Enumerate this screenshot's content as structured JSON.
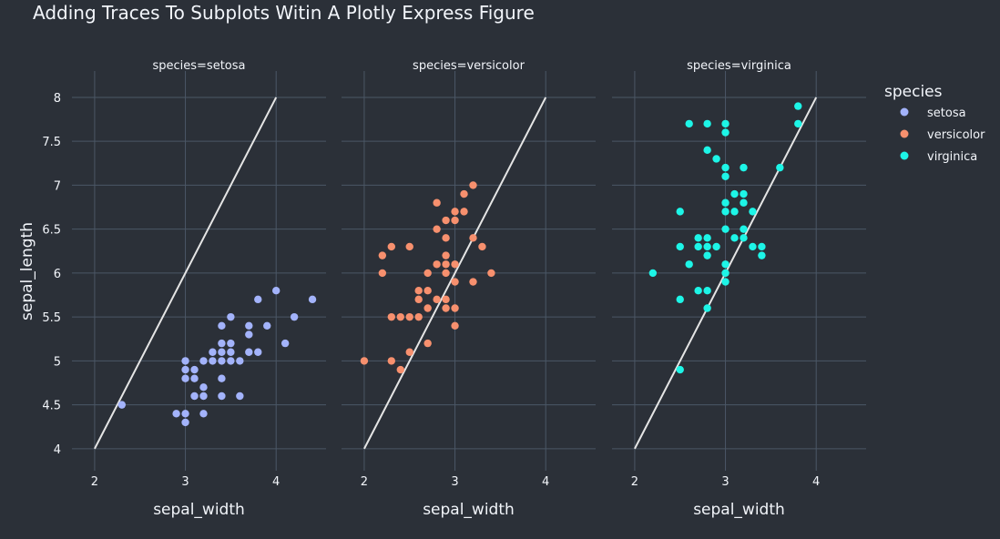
{
  "chart_data": {
    "type": "scatter",
    "title": "Adding Traces To Subplots Witin A Plotly Express Figure",
    "xlabel": "sepal_width",
    "ylabel": "sepal_length",
    "xlim": [
      1.75,
      4.55
    ],
    "ylim": [
      3.75,
      8.3
    ],
    "xticks": [
      2,
      3,
      4
    ],
    "yticks": [
      4,
      4.5,
      5,
      5.5,
      6,
      6.5,
      7,
      7.5,
      8
    ],
    "grid": true,
    "legend": {
      "title": "species",
      "position": "top-right"
    },
    "line": {
      "x": [
        2,
        4
      ],
      "y": [
        4,
        8
      ],
      "color": "#e5e5e5"
    },
    "panels": [
      {
        "title": "species=setosa",
        "series": "setosa",
        "color": "#a3b3fb",
        "points": [
          [
            2.3,
            4.5
          ],
          [
            2.9,
            4.4
          ],
          [
            3.0,
            4.4
          ],
          [
            3.0,
            4.3
          ],
          [
            3.0,
            5.0
          ],
          [
            3.0,
            4.9
          ],
          [
            3.0,
            4.8
          ],
          [
            3.1,
            4.9
          ],
          [
            3.1,
            4.8
          ],
          [
            3.1,
            4.6
          ],
          [
            3.2,
            4.7
          ],
          [
            3.2,
            4.6
          ],
          [
            3.2,
            4.4
          ],
          [
            3.2,
            5.0
          ],
          [
            3.3,
            5.1
          ],
          [
            3.3,
            5.0
          ],
          [
            3.4,
            5.4
          ],
          [
            3.4,
            5.2
          ],
          [
            3.4,
            5.1
          ],
          [
            3.4,
            5.0
          ],
          [
            3.4,
            4.8
          ],
          [
            3.4,
            4.6
          ],
          [
            3.5,
            5.5
          ],
          [
            3.5,
            5.2
          ],
          [
            3.5,
            5.1
          ],
          [
            3.5,
            5.0
          ],
          [
            3.6,
            5.0
          ],
          [
            3.6,
            4.6
          ],
          [
            3.7,
            5.4
          ],
          [
            3.7,
            5.3
          ],
          [
            3.7,
            5.1
          ],
          [
            3.8,
            5.7
          ],
          [
            3.8,
            5.1
          ],
          [
            3.9,
            5.4
          ],
          [
            4.0,
            5.8
          ],
          [
            4.1,
            5.2
          ],
          [
            4.2,
            5.5
          ],
          [
            4.4,
            5.7
          ]
        ]
      },
      {
        "title": "species=versicolor",
        "series": "versicolor",
        "color": "#f7906e",
        "points": [
          [
            2.0,
            5.0
          ],
          [
            2.2,
            6.2
          ],
          [
            2.2,
            6.0
          ],
          [
            2.3,
            6.3
          ],
          [
            2.3,
            5.5
          ],
          [
            2.3,
            5.0
          ],
          [
            2.4,
            5.5
          ],
          [
            2.4,
            4.9
          ],
          [
            2.5,
            6.3
          ],
          [
            2.5,
            5.5
          ],
          [
            2.5,
            5.1
          ],
          [
            2.6,
            5.8
          ],
          [
            2.6,
            5.7
          ],
          [
            2.6,
            5.5
          ],
          [
            2.7,
            6.0
          ],
          [
            2.7,
            5.8
          ],
          [
            2.7,
            5.6
          ],
          [
            2.7,
            5.2
          ],
          [
            2.8,
            6.8
          ],
          [
            2.8,
            6.5
          ],
          [
            2.8,
            6.1
          ],
          [
            2.8,
            5.7
          ],
          [
            2.9,
            6.6
          ],
          [
            2.9,
            6.4
          ],
          [
            2.9,
            6.2
          ],
          [
            2.9,
            6.1
          ],
          [
            2.9,
            6.0
          ],
          [
            2.9,
            5.7
          ],
          [
            2.9,
            5.6
          ],
          [
            3.0,
            6.7
          ],
          [
            3.0,
            6.6
          ],
          [
            3.0,
            6.1
          ],
          [
            3.0,
            5.9
          ],
          [
            3.0,
            5.6
          ],
          [
            3.0,
            5.4
          ],
          [
            3.1,
            6.9
          ],
          [
            3.1,
            6.7
          ],
          [
            3.2,
            7.0
          ],
          [
            3.2,
            6.4
          ],
          [
            3.2,
            5.9
          ],
          [
            3.3,
            6.3
          ],
          [
            3.4,
            6.0
          ]
        ]
      },
      {
        "title": "species=virginica",
        "series": "virginica",
        "color": "#1df5e7",
        "points": [
          [
            2.2,
            6.0
          ],
          [
            2.5,
            6.7
          ],
          [
            2.5,
            6.3
          ],
          [
            2.5,
            5.7
          ],
          [
            2.5,
            4.9
          ],
          [
            2.6,
            7.7
          ],
          [
            2.6,
            6.1
          ],
          [
            2.7,
            6.4
          ],
          [
            2.7,
            6.3
          ],
          [
            2.7,
            5.8
          ],
          [
            2.8,
            7.7
          ],
          [
            2.8,
            7.4
          ],
          [
            2.8,
            6.4
          ],
          [
            2.8,
            6.3
          ],
          [
            2.8,
            6.2
          ],
          [
            2.8,
            5.8
          ],
          [
            2.8,
            5.6
          ],
          [
            2.9,
            7.3
          ],
          [
            2.9,
            6.3
          ],
          [
            3.0,
            7.7
          ],
          [
            3.0,
            7.6
          ],
          [
            3.0,
            7.2
          ],
          [
            3.0,
            7.1
          ],
          [
            3.0,
            6.8
          ],
          [
            3.0,
            6.7
          ],
          [
            3.0,
            6.5
          ],
          [
            3.0,
            6.1
          ],
          [
            3.0,
            6.0
          ],
          [
            3.0,
            5.9
          ],
          [
            3.1,
            6.9
          ],
          [
            3.1,
            6.7
          ],
          [
            3.1,
            6.4
          ],
          [
            3.2,
            7.2
          ],
          [
            3.2,
            6.9
          ],
          [
            3.2,
            6.8
          ],
          [
            3.2,
            6.5
          ],
          [
            3.2,
            6.4
          ],
          [
            3.3,
            6.7
          ],
          [
            3.3,
            6.3
          ],
          [
            3.4,
            6.3
          ],
          [
            3.4,
            6.2
          ],
          [
            3.6,
            7.2
          ],
          [
            3.8,
            7.9
          ],
          [
            3.8,
            7.7
          ]
        ]
      }
    ]
  }
}
